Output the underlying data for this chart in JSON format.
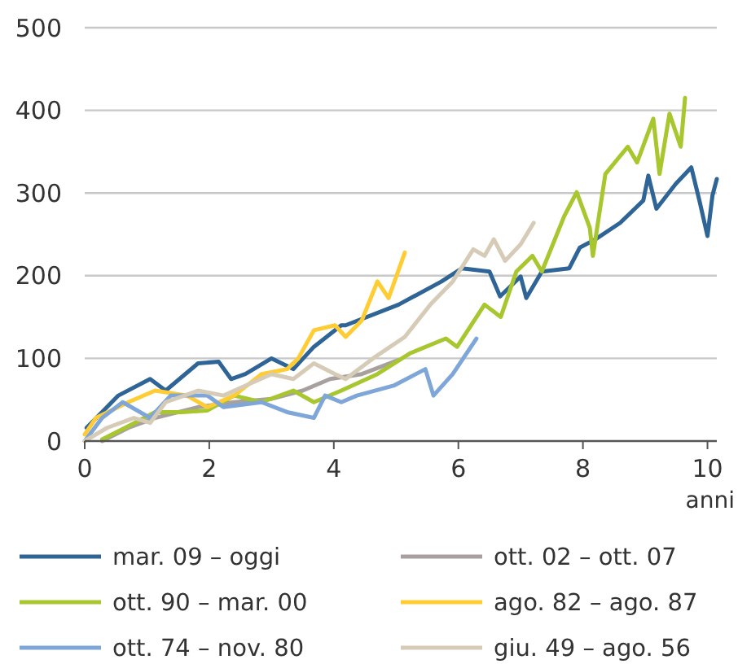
{
  "chart_data": {
    "type": "line",
    "xlabel": "anni",
    "xlim": [
      0,
      10.15
    ],
    "xticks": [
      0,
      2,
      4,
      6,
      8,
      10
    ],
    "ylim": [
      0,
      500
    ],
    "yticks": [
      0,
      100,
      200,
      300,
      400,
      500
    ],
    "grid": "y",
    "legend": "bottom",
    "series": [
      {
        "name": "mar. 09 – oggi",
        "color": "#2e6596",
        "x": [
          0.03,
          0.54,
          1.05,
          1.3,
          1.82,
          2.15,
          2.35,
          2.58,
          3.0,
          3.35,
          3.68,
          4.12,
          4.19,
          5.04,
          5.73,
          6.06,
          6.5,
          6.67,
          7.0,
          7.09,
          7.34,
          7.78,
          7.95,
          8.2,
          8.6,
          8.97,
          9.05,
          9.18,
          9.49,
          9.74,
          9.87,
          10.0,
          10.08,
          10.15
        ],
        "values": [
          16,
          55,
          75,
          61,
          94,
          96,
          75,
          81,
          100,
          87,
          114,
          140,
          140,
          165,
          193,
          209,
          205,
          175,
          199,
          173,
          205,
          209,
          234,
          244,
          264,
          291,
          321,
          281,
          311,
          331,
          291,
          248,
          297,
          317
        ]
      },
      {
        "name": "ott. 02 – ott. 07",
        "color": "#a8a09e",
        "x": [
          0.28,
          0.7,
          1.13,
          1.82,
          2.4,
          3.0,
          3.5,
          3.94,
          4.45,
          5.04
        ],
        "values": [
          0,
          16,
          28,
          41,
          47,
          51,
          61,
          75,
          81,
          98
        ]
      },
      {
        "name": "ott. 90 – mar. 00",
        "color": "#a8c62e",
        "x": [
          0.28,
          0.7,
          1.13,
          1.56,
          1.97,
          2.4,
          2.84,
          3.35,
          3.68,
          4.12,
          4.7,
          5.22,
          5.8,
          5.98,
          6.42,
          6.68,
          6.93,
          7.19,
          7.34,
          7.7,
          7.9,
          8.11,
          8.16,
          8.36,
          8.72,
          8.87,
          9.13,
          9.23,
          9.39,
          9.57,
          9.64
        ],
        "values": [
          2,
          18,
          35,
          35,
          37,
          55,
          47,
          61,
          47,
          61,
          81,
          106,
          124,
          114,
          165,
          150,
          205,
          224,
          205,
          272,
          301,
          258,
          224,
          323,
          356,
          337,
          390,
          323,
          396,
          356,
          415
        ]
      },
      {
        "name": "ago. 82 – ago. 87",
        "color": "#ffcc33",
        "x": [
          0,
          0.18,
          0.7,
          1.13,
          1.64,
          1.97,
          2.4,
          2.84,
          3.25,
          3.43,
          3.68,
          4.02,
          4.19,
          4.45,
          4.7,
          4.88,
          5.14
        ],
        "values": [
          8,
          28,
          47,
          61,
          55,
          41,
          55,
          81,
          87,
          100,
          134,
          140,
          126,
          146,
          193,
          173,
          228
        ]
      },
      {
        "name": "ott. 74 – nov. 80",
        "color": "#7ea6d8",
        "x": [
          0,
          0.28,
          0.61,
          1.05,
          1.38,
          1.97,
          2.23,
          2.84,
          3.25,
          3.68,
          3.86,
          4.12,
          4.37,
          4.96,
          5.47,
          5.6,
          5.91,
          6.29
        ],
        "values": [
          0,
          28,
          47,
          28,
          55,
          55,
          41,
          47,
          35,
          28,
          55,
          47,
          55,
          67,
          87,
          55,
          81,
          124
        ]
      },
      {
        "name": "giu. 49 – ago. 56",
        "color": "#d6cbb6",
        "x": [
          0,
          0.36,
          0.79,
          1.05,
          1.3,
          1.82,
          2.23,
          2.58,
          3.0,
          3.35,
          3.68,
          4.02,
          4.19,
          4.63,
          5.14,
          5.55,
          5.91,
          6.24,
          6.42,
          6.57,
          6.75,
          7.0,
          7.21
        ],
        "values": [
          0,
          16,
          28,
          22,
          47,
          61,
          55,
          67,
          81,
          75,
          94,
          81,
          75,
          100,
          126,
          165,
          193,
          232,
          224,
          244,
          218,
          238,
          264
        ]
      }
    ]
  }
}
